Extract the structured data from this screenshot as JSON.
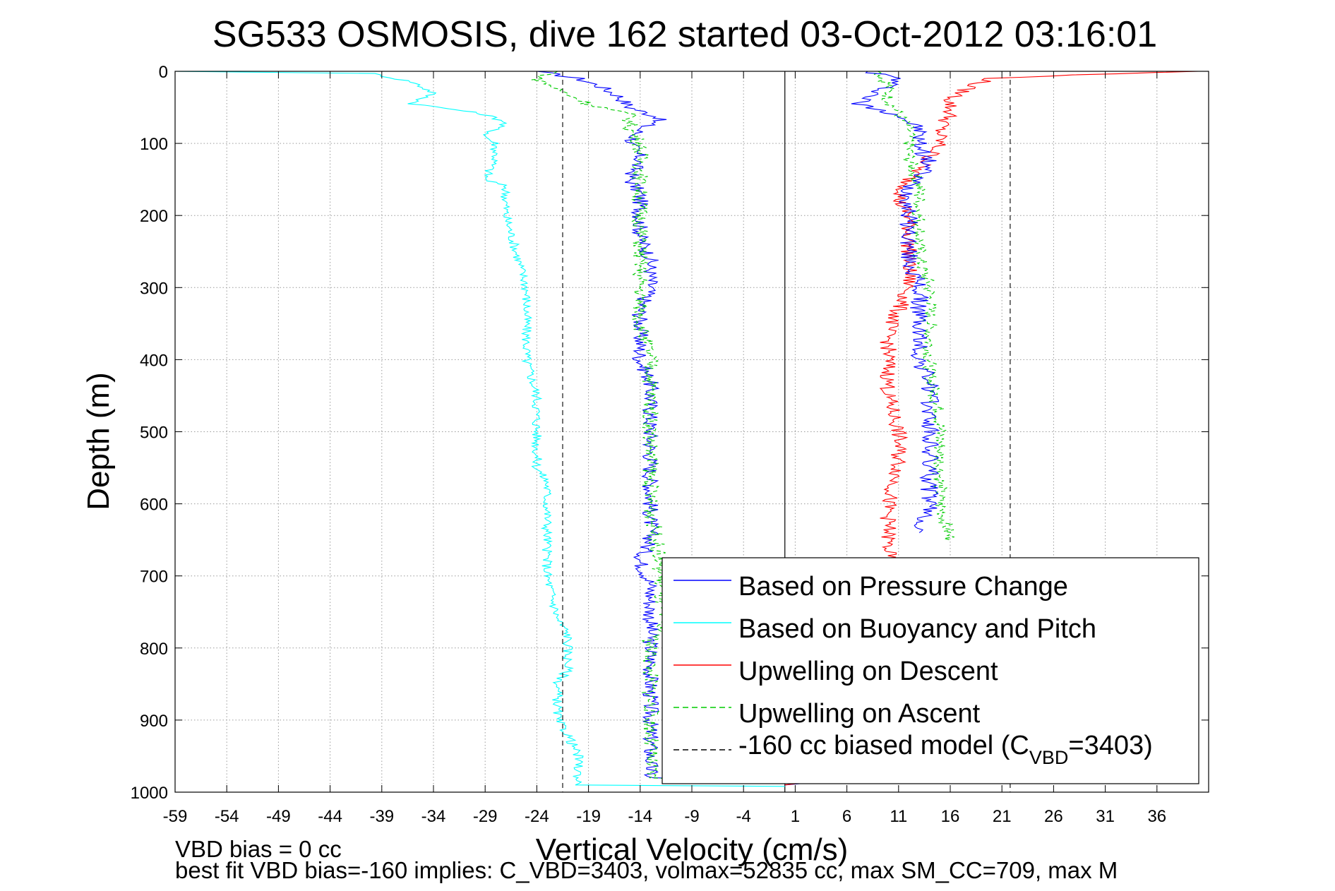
{
  "chart_data": {
    "type": "line",
    "title": "SG533 OSMOSIS, dive 162 started 03-Oct-2012 03:16:01",
    "xlabel": "Vertical Velocity (cm/s)",
    "ylabel": "Depth (m)",
    "xlim": [
      -59,
      41
    ],
    "ylim": [
      0,
      1000
    ],
    "y_reversed": true,
    "grid": true,
    "x_ticks": [
      "-59",
      "-54",
      "-49",
      "-44",
      "-39",
      "-34",
      "-29",
      "-24",
      "-19",
      "-14",
      "-9",
      "-4",
      "1",
      "6",
      "11",
      "16",
      "21",
      "26",
      "31",
      "36"
    ],
    "y_ticks": [
      "0",
      "100",
      "200",
      "300",
      "400",
      "500",
      "600",
      "700",
      "800",
      "900",
      "1000"
    ],
    "legend_position": "bottom-right",
    "annotations": [
      "VBD bias = 0 cc",
      "best fit VBD bias=-160 implies: C_VBD=3403, volmax=52835 cc, max SM_CC=709, max M"
    ],
    "series": [
      {
        "name": "Based on Pressure Change",
        "color": "#0000ff",
        "style": "solid",
        "points": [
          [
            -24,
            0
          ],
          [
            -20,
            10
          ],
          [
            -18,
            20
          ],
          [
            -16,
            35
          ],
          [
            -15,
            50
          ],
          [
            -12,
            65
          ],
          [
            -14,
            80
          ],
          [
            -15,
            100
          ],
          [
            -14,
            120
          ],
          [
            -15,
            150
          ],
          [
            -14,
            170
          ],
          [
            -14,
            200
          ],
          [
            -14,
            230
          ],
          [
            -13,
            260
          ],
          [
            -13,
            300
          ],
          [
            -14,
            330
          ],
          [
            -14,
            370
          ],
          [
            -14,
            400
          ],
          [
            -13,
            430
          ],
          [
            -13,
            470
          ],
          [
            -13,
            500
          ],
          [
            -13,
            540
          ],
          [
            -13,
            580
          ],
          [
            -13,
            620
          ],
          [
            -13,
            650
          ],
          [
            -14,
            680
          ],
          [
            -13,
            710
          ],
          [
            -13,
            740
          ],
          [
            -13,
            780
          ],
          [
            -13,
            800
          ],
          [
            -13,
            950
          ],
          [
            -13,
            980
          ],
          [
            0,
            985
          ],
          [
            8,
            980
          ],
          [
            0,
            990
          ]
        ]
      },
      {
        "name": "Based on Buoyancy and Pitch",
        "color": "#00ffff",
        "style": "solid",
        "points": [
          [
            -59,
            0
          ],
          [
            -40,
            3
          ],
          [
            -36,
            15
          ],
          [
            -34,
            30
          ],
          [
            -36,
            45
          ],
          [
            -31,
            55
          ],
          [
            -29,
            60
          ],
          [
            -27,
            70
          ],
          [
            -29,
            90
          ],
          [
            -28,
            100
          ],
          [
            -28,
            120
          ],
          [
            -29,
            150
          ],
          [
            -27,
            160
          ],
          [
            -27,
            200
          ],
          [
            -26,
            250
          ],
          [
            -25,
            300
          ],
          [
            -25,
            350
          ],
          [
            -25,
            400
          ],
          [
            -24,
            450
          ],
          [
            -24,
            500
          ],
          [
            -24,
            550
          ],
          [
            -23,
            570
          ],
          [
            -23,
            620
          ],
          [
            -23,
            700
          ],
          [
            -22,
            760
          ],
          [
            -21,
            780
          ],
          [
            -21,
            830
          ],
          [
            -22,
            850
          ],
          [
            -22,
            900
          ],
          [
            -21,
            920
          ],
          [
            -20,
            950
          ],
          [
            -20,
            990
          ],
          [
            0,
            992
          ]
        ]
      },
      {
        "name": "Upwelling on Descent",
        "color": "#ff0000",
        "style": "solid",
        "points": [
          [
            40,
            0
          ],
          [
            28,
            5
          ],
          [
            20,
            10
          ],
          [
            18,
            20
          ],
          [
            16,
            40
          ],
          [
            16,
            60
          ],
          [
            15,
            80
          ],
          [
            15,
            100
          ],
          [
            14,
            120
          ],
          [
            12,
            150
          ],
          [
            11,
            180
          ],
          [
            12,
            200
          ],
          [
            12,
            250
          ],
          [
            12,
            300
          ],
          [
            11,
            330
          ],
          [
            10,
            360
          ],
          [
            10,
            400
          ],
          [
            10,
            450
          ],
          [
            11,
            500
          ],
          [
            11,
            550
          ],
          [
            10,
            600
          ],
          [
            10,
            650
          ],
          [
            10,
            700
          ],
          [
            10,
            800
          ],
          [
            10,
            900
          ],
          [
            10,
            980
          ],
          [
            0,
            990
          ]
        ]
      },
      {
        "name": "Upwelling on Ascent",
        "color": "#00cc00",
        "style": "dashed",
        "points": [
          [
            -22,
            0
          ],
          [
            -24,
            10
          ],
          [
            -22,
            25
          ],
          [
            -19,
            45
          ],
          [
            -15,
            60
          ],
          [
            -15,
            80
          ],
          [
            -14,
            100
          ],
          [
            -14,
            150
          ],
          [
            -14,
            200
          ],
          [
            -14,
            250
          ],
          [
            -14,
            300
          ],
          [
            -14,
            350
          ],
          [
            -13,
            400
          ],
          [
            -13,
            450
          ],
          [
            -13,
            500
          ],
          [
            -13,
            550
          ],
          [
            -13,
            600
          ],
          [
            -12,
            700
          ],
          [
            -12,
            750
          ],
          [
            -12,
            780
          ],
          [
            -13,
            790
          ],
          [
            -13,
            950
          ],
          [
            -13,
            980
          ],
          [
            0,
            988
          ],
          [
            14,
            985
          ]
        ]
      },
      {
        "name": "-160 cc biased model (CVBD=3403)",
        "color": "#000000",
        "style": "dashed",
        "vertical_lines_x": [
          -21.5,
          21.8
        ]
      }
    ],
    "secondary_ascent_profile": {
      "note": "blue and green traces on positive side",
      "blue_points": [
        [
          8,
          0
        ],
        [
          11,
          10
        ],
        [
          9,
          30
        ],
        [
          7,
          45
        ],
        [
          11,
          60
        ],
        [
          13,
          80
        ],
        [
          13,
          100
        ],
        [
          14,
          130
        ],
        [
          12,
          160
        ],
        [
          12,
          200
        ],
        [
          12,
          260
        ],
        [
          13,
          300
        ],
        [
          13,
          350
        ],
        [
          13,
          400
        ],
        [
          14,
          430
        ],
        [
          14,
          470
        ],
        [
          14,
          500
        ],
        [
          14,
          550
        ],
        [
          14,
          600
        ],
        [
          13,
          640
        ]
      ],
      "green_points": [
        [
          9,
          0
        ],
        [
          10,
          20
        ],
        [
          10,
          40
        ],
        [
          12,
          80
        ],
        [
          12,
          120
        ],
        [
          13,
          160
        ],
        [
          13,
          200
        ],
        [
          13,
          260
        ],
        [
          14,
          300
        ],
        [
          14,
          360
        ],
        [
          14,
          420
        ],
        [
          15,
          480
        ],
        [
          15,
          540
        ],
        [
          15,
          600
        ],
        [
          16,
          650
        ]
      ]
    },
    "reference_line_x": 0
  },
  "legend": {
    "items": [
      {
        "label": "Based on Pressure Change",
        "color": "#0000ff",
        "style": "solid"
      },
      {
        "label": "Based on Buoyancy and Pitch",
        "color": "#00ffff",
        "style": "solid"
      },
      {
        "label": "Upwelling on Descent",
        "color": "#ff0000",
        "style": "solid"
      },
      {
        "label": "Upwelling on Ascent",
        "color": "#00cc00",
        "style": "dashed"
      },
      {
        "label_prefix": "-160 cc biased model (C",
        "label_sub": "VBD",
        "label_suffix": "=3403)",
        "color": "#000000",
        "style": "dashed"
      }
    ]
  }
}
